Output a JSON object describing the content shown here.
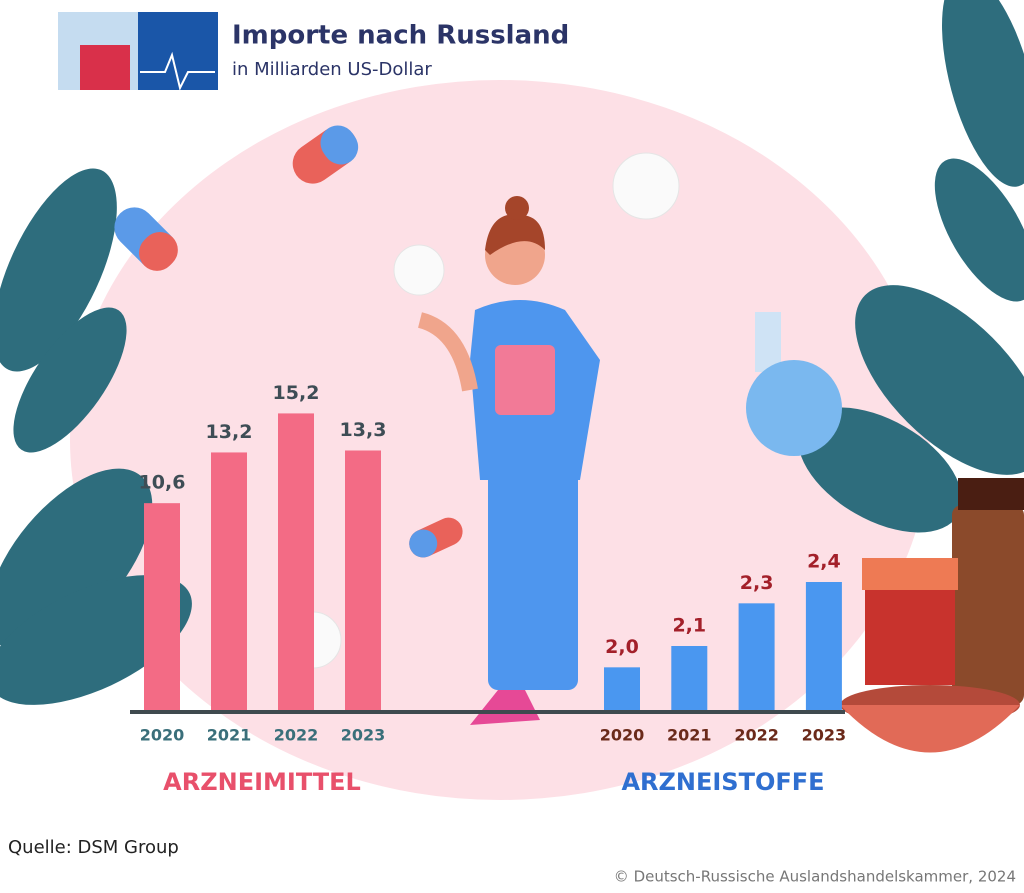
{
  "header": {
    "title": "Importe nach Russland",
    "subtitle": "in Milliarden US-Dollar"
  },
  "chart_data": [
    {
      "type": "bar",
      "title": "ARZNEIMITTEL",
      "categories": [
        "2020",
        "2021",
        "2022",
        "2023"
      ],
      "values": [
        10.6,
        13.2,
        15.2,
        13.3
      ],
      "value_labels": [
        "10,6",
        "13,2",
        "15,2",
        "13,3"
      ],
      "color": "#f36b85",
      "ylim": [
        0,
        16.4
      ]
    },
    {
      "type": "bar",
      "title": "ARZNEISTOFFE",
      "categories": [
        "2020",
        "2021",
        "2022",
        "2023"
      ],
      "values": [
        2.0,
        2.1,
        2.3,
        2.4
      ],
      "value_labels": [
        "2,0",
        "2,1",
        "2,3",
        "2,4"
      ],
      "color": "#4a97f0",
      "ylim": [
        1.8,
        3.3
      ]
    }
  ],
  "footer": {
    "source": "Quelle: DSM Group",
    "copyright": "© Deutsch-Russische Auslandshandelskammer, 2024"
  }
}
